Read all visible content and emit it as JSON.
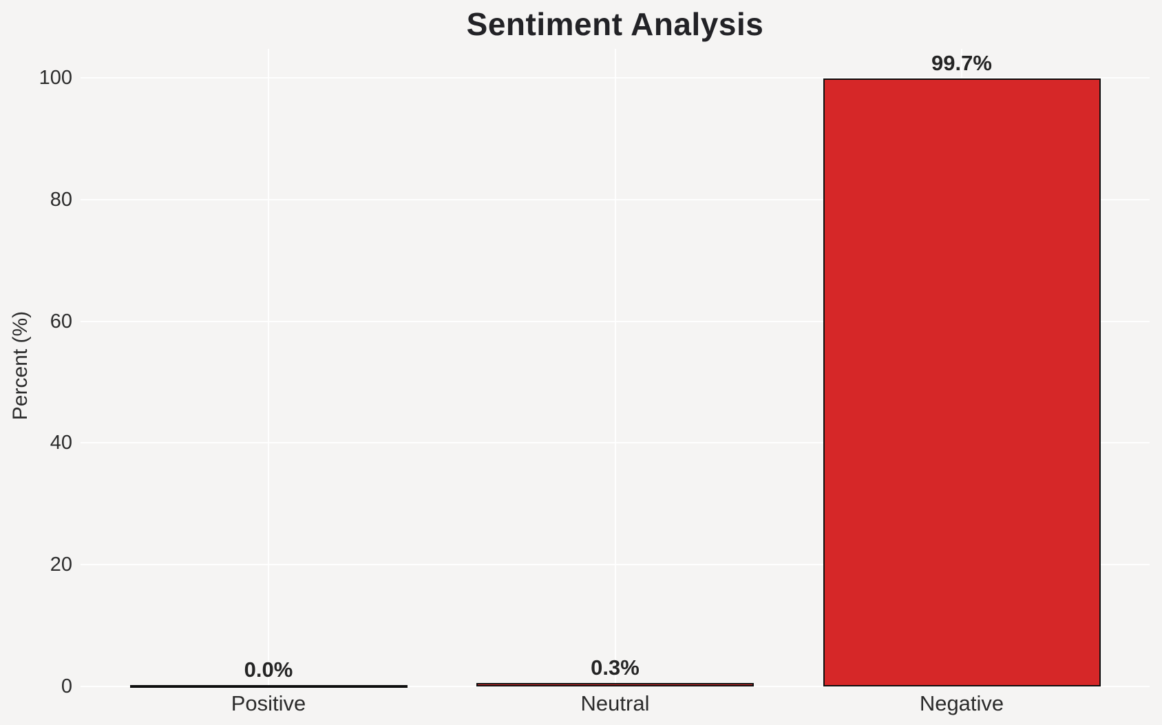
{
  "chart_data": {
    "type": "bar",
    "title": "Sentiment Analysis",
    "xlabel": "",
    "ylabel": "Percent (%)",
    "categories": [
      "Positive",
      "Neutral",
      "Negative"
    ],
    "values": [
      0.0,
      0.3,
      99.7
    ],
    "bar_labels": [
      "0.0%",
      "0.3%",
      "99.7%"
    ],
    "yticks": [
      0,
      20,
      40,
      60,
      80,
      100
    ],
    "ylim": [
      0,
      104.8
    ],
    "grid": true,
    "legend": false,
    "bar_color": "#d62728",
    "bar_edge_color": "#0e0e0e",
    "background_color": "#f5f4f3",
    "gridline_color": "#ffffff",
    "text_color": "#2b2b2b"
  }
}
